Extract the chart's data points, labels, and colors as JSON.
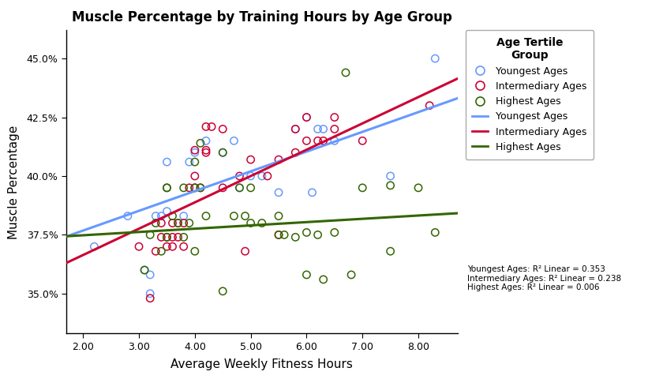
{
  "title": "Muscle Percentage by Training Hours by Age Group",
  "xlabel": "Average Weekly Fitness Hours",
  "ylabel": "Muscle Percentage",
  "legend_title": "Age Tertile\nGroup",
  "xlim": [
    1.7,
    8.7
  ],
  "ylim": [
    0.333,
    0.462
  ],
  "yticks": [
    0.35,
    0.375,
    0.4,
    0.425,
    0.45
  ],
  "ytick_labels": [
    "35.0%",
    "37.5%",
    "40.0%",
    "42.5%",
    "45.0%"
  ],
  "xticks": [
    2.0,
    3.0,
    4.0,
    5.0,
    6.0,
    7.0,
    8.0
  ],
  "xtick_labels": [
    "2.00",
    "3.00",
    "4.00",
    "5.00",
    "6.00",
    "7.00",
    "8.00"
  ],
  "groups": {
    "youngest": {
      "color": "#6699FF",
      "x": [
        2.2,
        2.8,
        3.1,
        3.2,
        3.2,
        3.3,
        3.4,
        3.5,
        3.5,
        3.8,
        3.9,
        4.0,
        4.0,
        4.2,
        4.5,
        4.7,
        4.8,
        5.0,
        5.2,
        5.5,
        5.8,
        6.0,
        6.1,
        6.2,
        6.3,
        6.5,
        7.5,
        8.3
      ],
      "y": [
        0.37,
        0.383,
        0.36,
        0.35,
        0.358,
        0.383,
        0.383,
        0.385,
        0.406,
        0.383,
        0.406,
        0.395,
        0.41,
        0.415,
        0.41,
        0.415,
        0.395,
        0.4,
        0.4,
        0.393,
        0.42,
        0.425,
        0.393,
        0.42,
        0.42,
        0.415,
        0.4,
        0.45
      ],
      "slope": 0.0084,
      "intercept": 0.36
    },
    "intermediary": {
      "color": "#CC0033",
      "x": [
        3.0,
        3.2,
        3.3,
        3.4,
        3.4,
        3.5,
        3.5,
        3.6,
        3.6,
        3.6,
        3.7,
        3.7,
        3.8,
        3.8,
        3.9,
        4.0,
        4.0,
        4.0,
        4.1,
        4.2,
        4.2,
        4.2,
        4.3,
        4.5,
        4.5,
        4.8,
        4.9,
        5.0,
        5.3,
        5.5,
        5.5,
        5.8,
        5.8,
        6.0,
        6.0,
        6.2,
        6.3,
        6.5,
        6.5,
        7.0,
        8.2
      ],
      "y": [
        0.37,
        0.348,
        0.368,
        0.374,
        0.38,
        0.374,
        0.37,
        0.37,
        0.374,
        0.38,
        0.374,
        0.38,
        0.37,
        0.38,
        0.395,
        0.395,
        0.4,
        0.411,
        0.395,
        0.421,
        0.41,
        0.411,
        0.421,
        0.395,
        0.42,
        0.4,
        0.368,
        0.407,
        0.4,
        0.375,
        0.407,
        0.41,
        0.42,
        0.415,
        0.425,
        0.415,
        0.415,
        0.42,
        0.425,
        0.415,
        0.43
      ],
      "slope": 0.0112,
      "intercept": 0.344
    },
    "highest": {
      "color": "#336600",
      "x": [
        3.1,
        3.2,
        3.3,
        3.4,
        3.5,
        3.5,
        3.5,
        3.6,
        3.7,
        3.8,
        3.8,
        3.9,
        4.0,
        4.0,
        4.0,
        4.1,
        4.1,
        4.2,
        4.5,
        4.5,
        4.7,
        4.8,
        4.9,
        5.0,
        5.0,
        5.2,
        5.5,
        5.5,
        5.6,
        5.8,
        6.0,
        6.0,
        6.2,
        6.3,
        6.5,
        6.7,
        6.8,
        7.0,
        7.5,
        7.5,
        8.0,
        8.3
      ],
      "y": [
        0.36,
        0.375,
        0.38,
        0.368,
        0.395,
        0.374,
        0.395,
        0.383,
        0.38,
        0.374,
        0.395,
        0.38,
        0.395,
        0.406,
        0.368,
        0.395,
        0.414,
        0.383,
        0.41,
        0.351,
        0.383,
        0.395,
        0.383,
        0.38,
        0.395,
        0.38,
        0.383,
        0.375,
        0.375,
        0.374,
        0.358,
        0.376,
        0.375,
        0.356,
        0.376,
        0.444,
        0.358,
        0.395,
        0.368,
        0.396,
        0.395,
        0.376
      ],
      "slope": 0.0014,
      "intercept": 0.372
    }
  },
  "r2_lines": [
    "Youngest Ages: R² Linear = 0.353",
    "Intermediary Ages: R² Linear = 0.238",
    "Highest Ages: R² Linear = 0.006"
  ],
  "background_color": "#FFFFFF",
  "plot_bg_color": "#FFFFFF"
}
